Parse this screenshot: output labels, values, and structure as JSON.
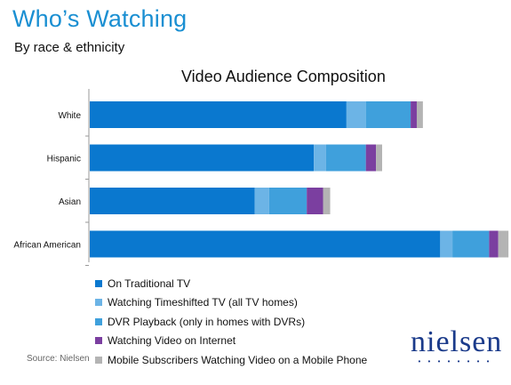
{
  "header": {
    "title": "Who’s Watching",
    "subtitle": "By race & ethnicity"
  },
  "source": "Source: Nielsen",
  "logo": {
    "text": "nielsen",
    "dots": "• • • • • • • •"
  },
  "chart_data": {
    "type": "bar",
    "orientation": "horizontal",
    "stacked": true,
    "title": "Video Audience Composition",
    "xlabel": "",
    "ylabel": "",
    "categories": [
      "White",
      "Hispanic",
      "Asian",
      "African American"
    ],
    "series": [
      {
        "name": "On Traditional TV",
        "color": "#0a78cf",
        "values": [
          126,
          110,
          81,
          172
        ]
      },
      {
        "name": "Watching Timeshifted TV (all TV homes)",
        "color": "#6cb4e6",
        "values": [
          9.5,
          6,
          7,
          6
        ]
      },
      {
        "name": "DVR Playback (only in homes with DVRs)",
        "color": "#3fa0dc",
        "values": [
          22,
          19.5,
          18.5,
          18
        ]
      },
      {
        "name": "Watching Video on Internet",
        "color": "#7b3fa0",
        "values": [
          3,
          5,
          8,
          4.5
        ]
      },
      {
        "name": "Mobile Subscribers Watching Video on a Mobile Phone",
        "color": "#b4b4b4",
        "values": [
          3,
          3,
          3.5,
          5
        ]
      }
    ],
    "xlim": [
      0,
      205
    ],
    "grid": false,
    "legend_position": "bottom-left"
  }
}
